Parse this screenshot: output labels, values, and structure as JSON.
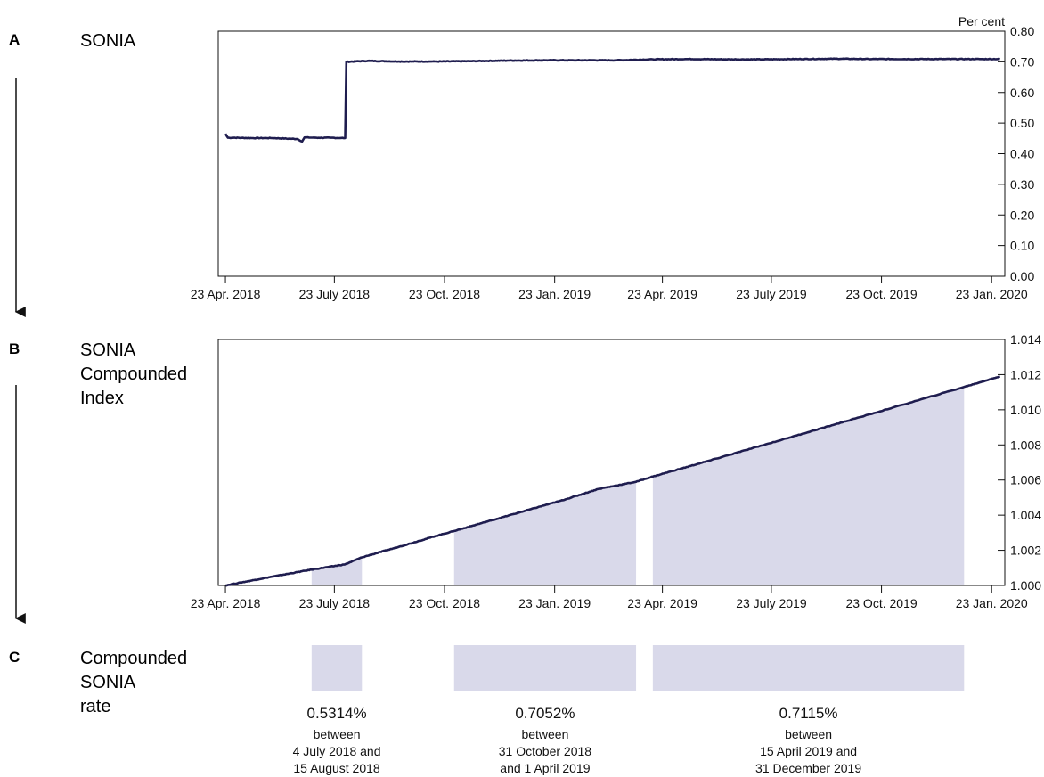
{
  "panels": [
    {
      "letter": "A",
      "title_lines": [
        "SONIA"
      ]
    },
    {
      "letter": "B",
      "title_lines": [
        "SONIA",
        "Compounded",
        "Index"
      ]
    },
    {
      "letter": "C",
      "title_lines": [
        "Compounded",
        "SONIA",
        "rate"
      ]
    }
  ],
  "colors": {
    "line": "#1f1d4f",
    "shade": "#d9d9ea",
    "axis": "#111111"
  },
  "chart_data": [
    {
      "id": "sonia",
      "type": "line",
      "unit_label": "Per cent",
      "x_ticks": [
        "23 Apr. 2018",
        "23 July 2018",
        "23 Oct. 2018",
        "23 Jan. 2019",
        "23 Apr. 2019",
        "23 July 2019",
        "23 Oct. 2019",
        "23 Jan. 2020"
      ],
      "x_tick_dates": [
        "2018-04-23",
        "2018-07-23",
        "2018-10-23",
        "2019-01-23",
        "2019-04-23",
        "2019-07-23",
        "2019-10-23",
        "2020-01-23"
      ],
      "xlim": [
        "2018-04-17",
        "2020-02-03"
      ],
      "y_ticks": [
        "0.00",
        "0.10",
        "0.20",
        "0.30",
        "0.40",
        "0.50",
        "0.60",
        "0.70",
        "0.80"
      ],
      "ylim": [
        0,
        0.8
      ],
      "y_axis_side": "right",
      "grid": false,
      "series": [
        {
          "points": [
            [
              "2018-04-23",
              0.465
            ],
            [
              "2018-04-25",
              0.452
            ],
            [
              "2018-05-01",
              0.452
            ],
            [
              "2018-05-15",
              0.451
            ],
            [
              "2018-06-01",
              0.451
            ],
            [
              "2018-06-15",
              0.449
            ],
            [
              "2018-06-22",
              0.448
            ],
            [
              "2018-06-26",
              0.44
            ],
            [
              "2018-06-28",
              0.453
            ],
            [
              "2018-07-10",
              0.452
            ],
            [
              "2018-07-20",
              0.452
            ],
            [
              "2018-08-01",
              0.451
            ],
            [
              "2018-08-02",
              0.7
            ],
            [
              "2018-08-20",
              0.703
            ],
            [
              "2018-09-15",
              0.701
            ],
            [
              "2018-10-15",
              0.701
            ],
            [
              "2018-11-15",
              0.702
            ],
            [
              "2018-12-15",
              0.704
            ],
            [
              "2019-01-15",
              0.705
            ],
            [
              "2019-02-15",
              0.705
            ],
            [
              "2019-03-15",
              0.705
            ],
            [
              "2019-04-15",
              0.708
            ],
            [
              "2019-05-15",
              0.709
            ],
            [
              "2019-06-15",
              0.708
            ],
            [
              "2019-07-15",
              0.708
            ],
            [
              "2019-08-15",
              0.709
            ],
            [
              "2019-09-15",
              0.71
            ],
            [
              "2019-10-15",
              0.709
            ],
            [
              "2019-11-15",
              0.709
            ],
            [
              "2019-12-15",
              0.709
            ],
            [
              "2020-01-15",
              0.709
            ],
            [
              "2020-01-30",
              0.709
            ]
          ]
        }
      ]
    },
    {
      "id": "compounded-index",
      "type": "area",
      "x_ticks": [
        "23 Apr. 2018",
        "23 July 2018",
        "23 Oct. 2018",
        "23 Jan. 2019",
        "23 Apr. 2019",
        "23 July 2019",
        "23 Oct. 2019",
        "23 Jan. 2020"
      ],
      "x_tick_dates": [
        "2018-04-23",
        "2018-07-23",
        "2018-10-23",
        "2019-01-23",
        "2019-04-23",
        "2019-07-23",
        "2019-10-23",
        "2020-01-23"
      ],
      "xlim": [
        "2018-04-17",
        "2020-02-03"
      ],
      "y_ticks": [
        "1.000",
        "1.002",
        "1.004",
        "1.006",
        "1.008",
        "1.010",
        "1.012",
        "1.014"
      ],
      "ylim": [
        1.0,
        1.014
      ],
      "y_axis_side": "right",
      "grid": false,
      "series": [
        {
          "points": [
            [
              "2018-04-23",
              1.0
            ],
            [
              "2018-06-01",
              1.0005
            ],
            [
              "2018-07-04",
              1.0009
            ],
            [
              "2018-08-01",
              1.0012
            ],
            [
              "2018-08-15",
              1.0016
            ],
            [
              "2018-09-15",
              1.0022
            ],
            [
              "2018-10-15",
              1.0028
            ],
            [
              "2018-10-31",
              1.0031
            ],
            [
              "2018-12-01",
              1.0037
            ],
            [
              "2019-01-01",
              1.0043
            ],
            [
              "2019-02-01",
              1.0049
            ],
            [
              "2019-03-01",
              1.0055
            ],
            [
              "2019-04-01",
              1.0059
            ],
            [
              "2019-04-15",
              1.0062
            ],
            [
              "2019-06-01",
              1.0071
            ],
            [
              "2019-08-01",
              1.0083
            ],
            [
              "2019-10-01",
              1.0095
            ],
            [
              "2019-12-31",
              1.0113
            ],
            [
              "2020-01-30",
              1.0119
            ]
          ]
        }
      ],
      "shaded_ranges": [
        [
          "2018-07-04",
          "2018-08-15"
        ],
        [
          "2018-10-31",
          "2019-04-01"
        ],
        [
          "2019-04-15",
          "2019-12-31"
        ]
      ]
    }
  ],
  "rates": [
    {
      "start": "2018-07-04",
      "end": "2018-08-15",
      "value": "0.5314%",
      "lines": [
        "between",
        "4 July 2018 and",
        "15 August 2018"
      ]
    },
    {
      "start": "2018-10-31",
      "end": "2019-04-01",
      "value": "0.7052%",
      "lines": [
        "between",
        "31 October 2018",
        "and 1 April 2019"
      ]
    },
    {
      "start": "2019-04-15",
      "end": "2019-12-31",
      "value": "0.7115%",
      "lines": [
        "between",
        "15 April 2019 and",
        "31 December 2019"
      ]
    }
  ]
}
